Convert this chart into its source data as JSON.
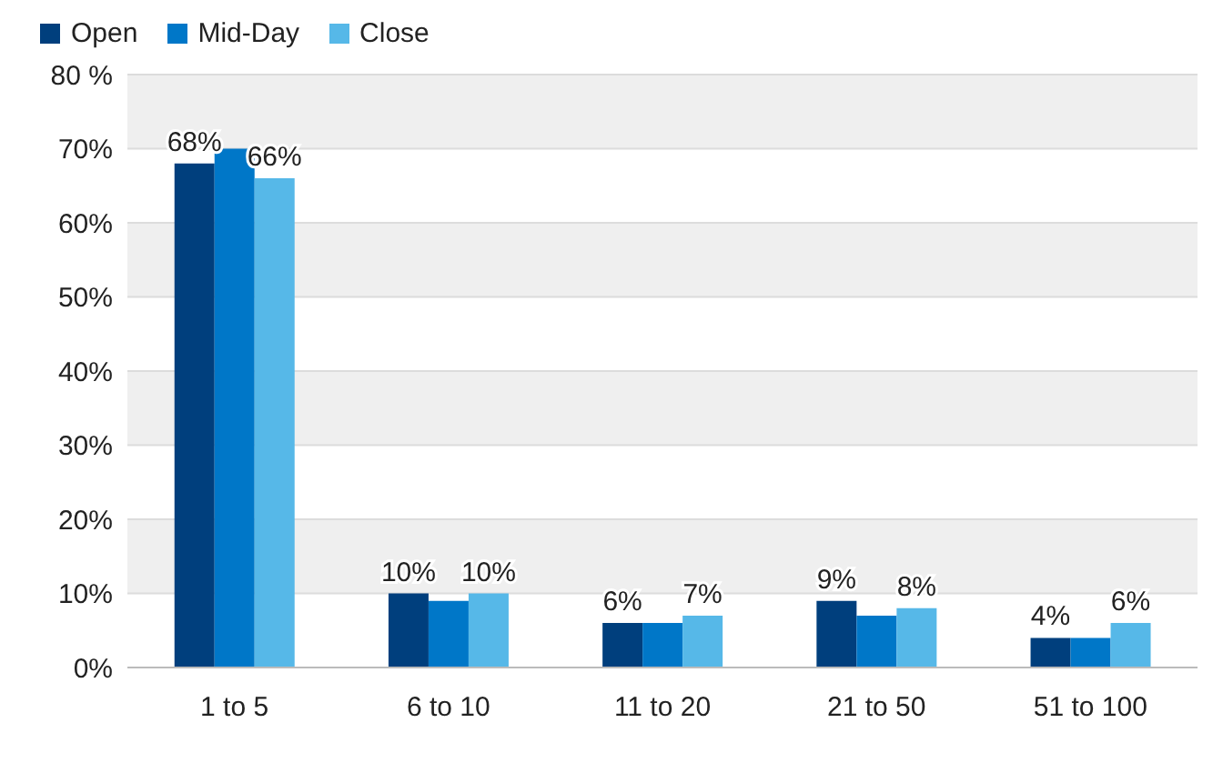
{
  "chart_data": {
    "type": "bar",
    "categories": [
      "1 to 5",
      "6 to 10",
      "11 to 20",
      "21 to 50",
      "51 to 100"
    ],
    "series": [
      {
        "name": "Open",
        "color": "#003f7d",
        "values": [
          68,
          10,
          6,
          9,
          4
        ],
        "value_labels": [
          "68%",
          "10%",
          "6%",
          "9%",
          "4%"
        ]
      },
      {
        "name": "Mid-Day",
        "color": "#0077c8",
        "values": [
          70,
          9,
          6,
          7,
          4
        ],
        "value_labels": [
          null,
          null,
          null,
          null,
          null
        ]
      },
      {
        "name": "Close",
        "color": "#56b8e8",
        "values": [
          66,
          10,
          7,
          8,
          6
        ],
        "value_labels": [
          "66%",
          "10%",
          "7%",
          "8%",
          "6%"
        ]
      }
    ],
    "ylim": [
      0,
      80
    ],
    "yticks": [
      {
        "value": 0,
        "label": "0%"
      },
      {
        "value": 10,
        "label": "10%"
      },
      {
        "value": 20,
        "label": "20%"
      },
      {
        "value": 30,
        "label": "30%"
      },
      {
        "value": 40,
        "label": "40%"
      },
      {
        "value": 50,
        "label": "50%"
      },
      {
        "value": 60,
        "label": "60%"
      },
      {
        "value": 70,
        "label": "70%"
      },
      {
        "value": 80,
        "label": "80 %"
      }
    ],
    "grid": "y",
    "legend": "top left"
  }
}
